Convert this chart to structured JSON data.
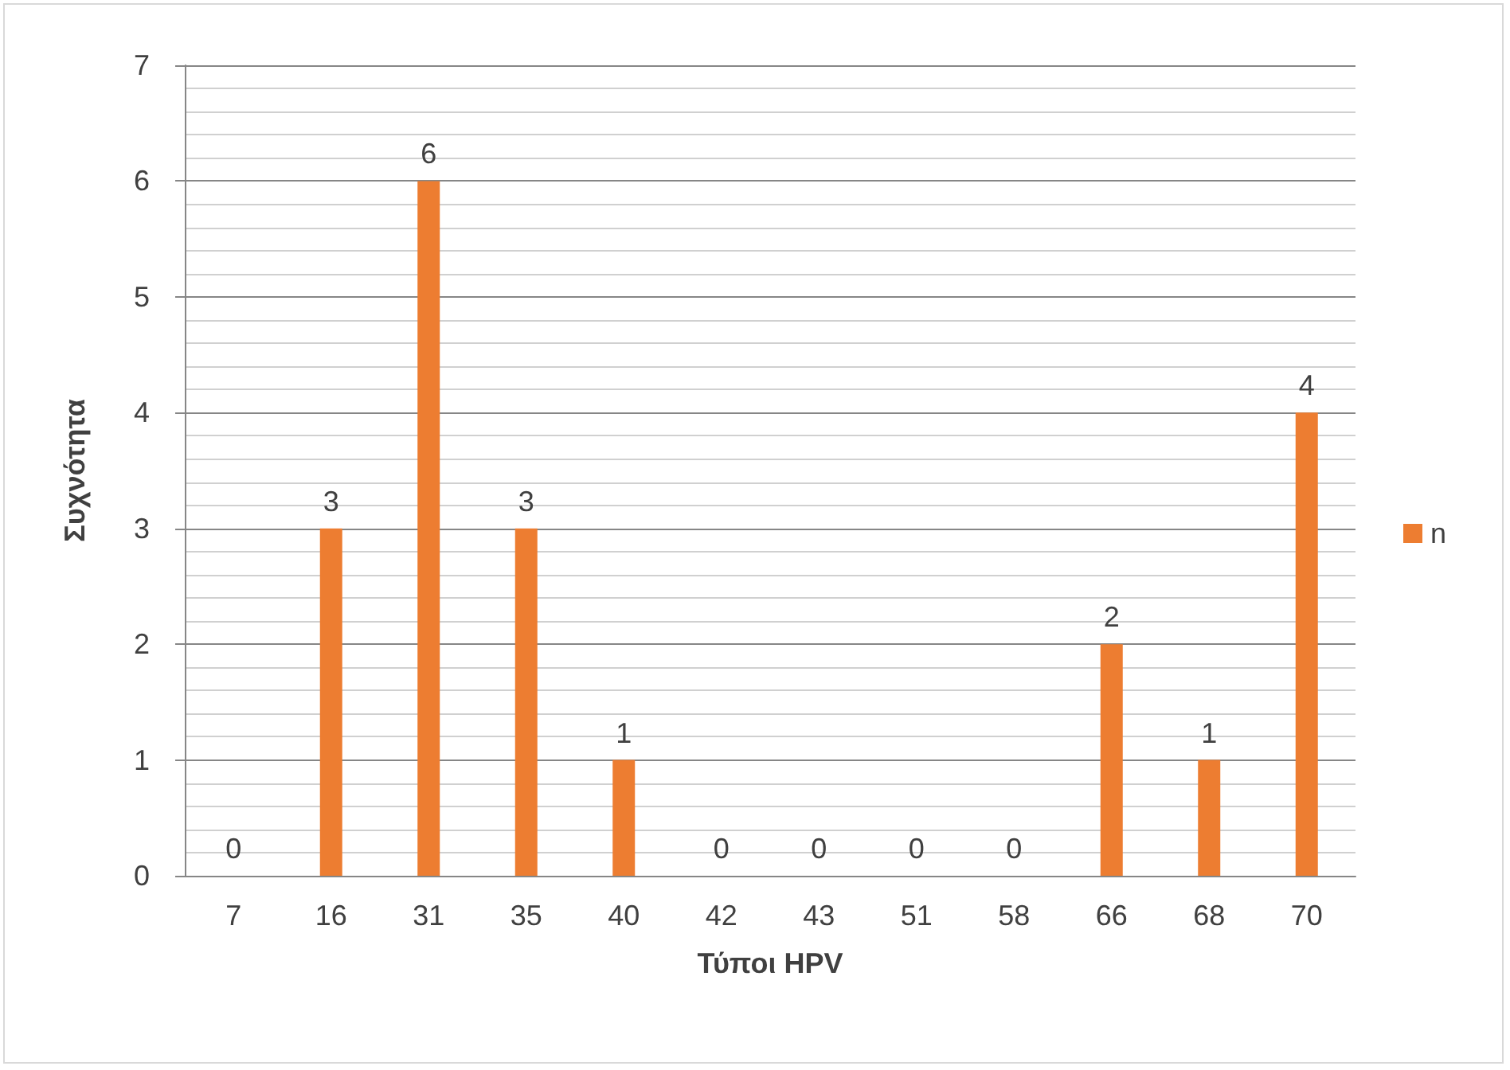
{
  "chart_data": {
    "type": "bar",
    "xlabel": "Τύποι HPV",
    "ylabel": "Συχνότητα",
    "categories": [
      "7",
      "16",
      "31",
      "35",
      "40",
      "42",
      "43",
      "51",
      "58",
      "66",
      "68",
      "70"
    ],
    "series": [
      {
        "name": "n",
        "color": "#ed7d31",
        "values": [
          0,
          3,
          6,
          3,
          1,
          0,
          0,
          0,
          0,
          2,
          1,
          4
        ]
      }
    ],
    "ylim": [
      0,
      7
    ],
    "yticks": [
      0,
      1,
      2,
      3,
      4,
      5,
      6,
      7
    ],
    "grid": "y",
    "legend": "right",
    "data_labels": true
  }
}
